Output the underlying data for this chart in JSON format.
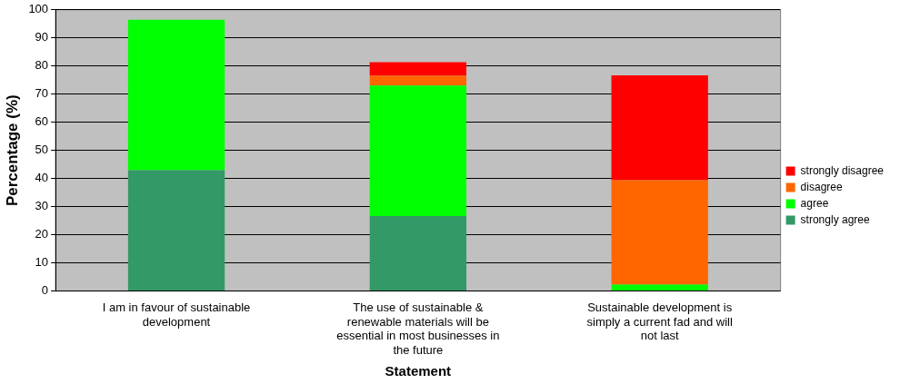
{
  "chart_data": {
    "type": "bar",
    "stacked": true,
    "xlabel": "Statement",
    "ylabel": "Percentage (%)",
    "categories": [
      "I am in favour of sustainable development",
      "The use of sustainable & renewable materials will be essential in most businesses in the future",
      "Sustainable development is simply a current fad and will not last"
    ],
    "series": [
      {
        "name": "strongly agree",
        "color": "#339966",
        "values": [
          43.0,
          26.7,
          0
        ]
      },
      {
        "name": "agree",
        "color": "#00ff00",
        "values": [
          53.5,
          46.4,
          2.3
        ]
      },
      {
        "name": "disagree",
        "color": "#ff6600",
        "values": [
          0,
          3.4,
          37.1
        ]
      },
      {
        "name": "strongly disagree",
        "color": "#ff0000",
        "values": [
          0,
          4.9,
          37.3
        ]
      }
    ],
    "ylim": [
      0,
      100
    ],
    "yticks": [
      0,
      10,
      20,
      30,
      40,
      50,
      60,
      70,
      80,
      90,
      100
    ],
    "grid": "y",
    "legend": "right"
  }
}
